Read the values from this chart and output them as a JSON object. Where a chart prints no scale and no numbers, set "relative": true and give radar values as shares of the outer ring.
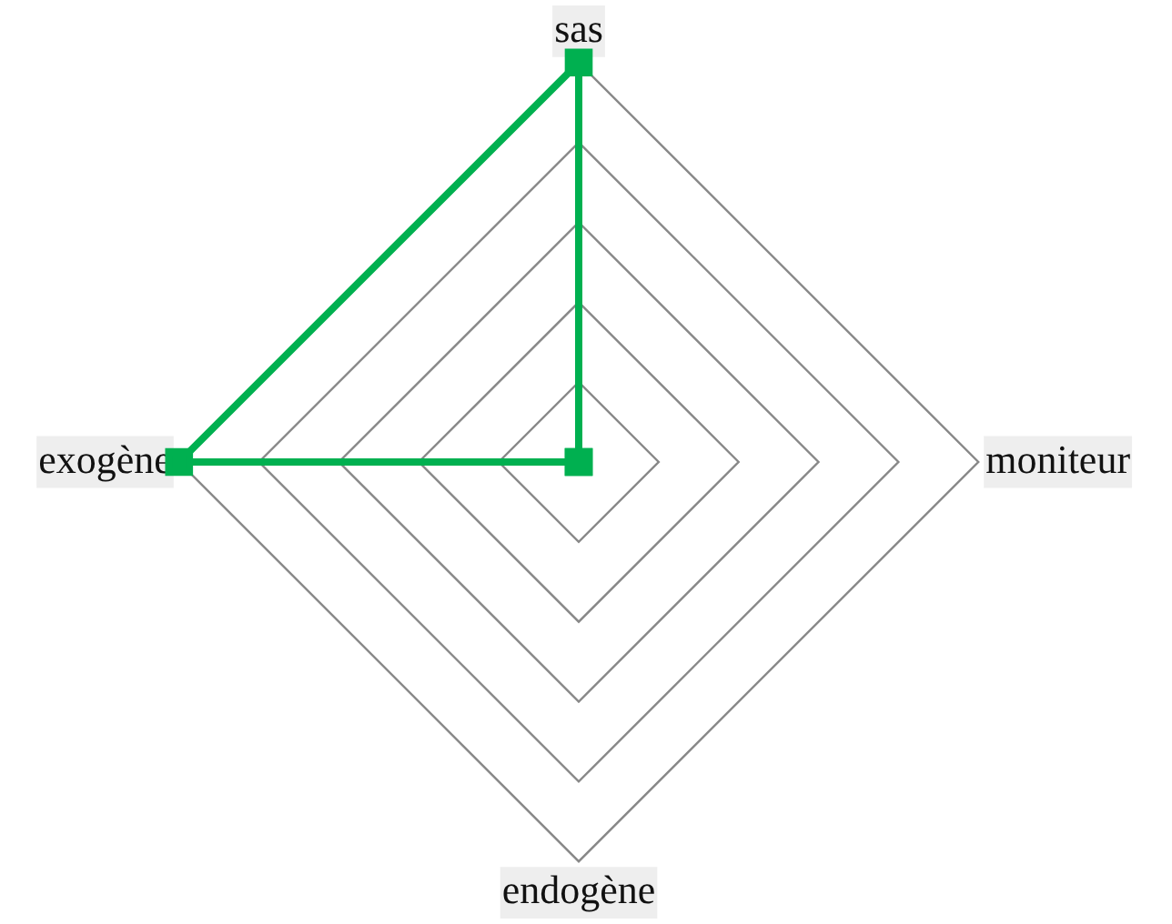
{
  "chart_data": {
    "type": "radar",
    "categories": [
      "sas",
      "moniteur",
      "endogène",
      "exogène"
    ],
    "series": [
      {
        "color": "#00b050",
        "values": [
          1,
          0,
          0,
          1
        ]
      }
    ],
    "relative": true,
    "grid": true,
    "legend": false,
    "marker": "square",
    "line_style": "solid"
  }
}
